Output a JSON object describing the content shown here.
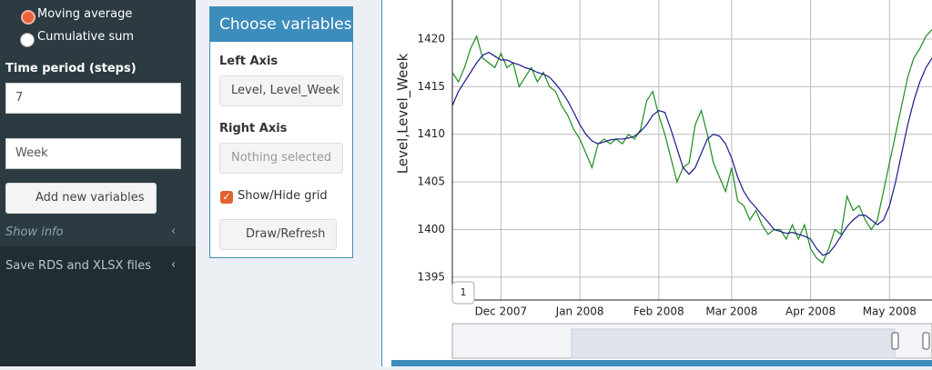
{
  "sidebar": {
    "radio_options": [
      "Moving average",
      "Cumulative sum"
    ],
    "time_period_label": "Time period (steps)",
    "time_period_value": "7",
    "name_value": "Week",
    "add_button": "Add new variables",
    "show_info": "Show info",
    "save_menu": "Save RDS and XLSX files"
  },
  "box": {
    "title": "Choose variables",
    "left_axis_label": "Left Axis",
    "left_axis_value": "Level, Level_Week",
    "right_axis_label": "Right Axis",
    "right_axis_value": "Nothing selected",
    "grid_checkbox": "Show/Hide grid",
    "draw_button": "Draw/Refresh"
  },
  "chart_data": {
    "type": "line",
    "ylabel": "Level,Level_Week",
    "annotation": "1",
    "grid": true,
    "categories": [
      null,
      null,
      null,
      null,
      null,
      null,
      null,
      null,
      "Dec 2007",
      null,
      null,
      null,
      null,
      null,
      null,
      null,
      null,
      null,
      null,
      null,
      null,
      "Jan 2008",
      null,
      null,
      null,
      null,
      null,
      null,
      null,
      null,
      null,
      null,
      null,
      null,
      "Feb 2008",
      null,
      null,
      null,
      null,
      null,
      null,
      null,
      null,
      null,
      null,
      null,
      "Mar 2008",
      null,
      null,
      null,
      null,
      null,
      null,
      null,
      null,
      null,
      null,
      null,
      null,
      "Apr 2008",
      null,
      null,
      null,
      null,
      null,
      null,
      null,
      null,
      null,
      null,
      null,
      null,
      "May 2008",
      null,
      null,
      null,
      null,
      null,
      null,
      null
    ],
    "ylim": [
      1392.6,
      1424.1
    ],
    "yticks": [
      1395,
      1400,
      1405,
      1410,
      1415,
      1420
    ],
    "series": [
      {
        "color": "#1e8c1e",
        "values": [
          1416.5,
          1415.5,
          1417,
          1419,
          1420.3,
          1418,
          1417.5,
          1417,
          1418.5,
          1417,
          1417.5,
          1415,
          1416,
          1417,
          1415.5,
          1416.5,
          1415,
          1414.5,
          1413,
          1412,
          1410.5,
          1409.5,
          1408,
          1406.5,
          1409,
          1409.5,
          1409,
          1409.5,
          1409,
          1410,
          1409.5,
          1410.5,
          1413.5,
          1414.5,
          1412,
          1410,
          1407.5,
          1405,
          1406.5,
          1407,
          1411,
          1412.5,
          1410,
          1407,
          1405.5,
          1404,
          1406.5,
          1403,
          1402.5,
          1401,
          1402,
          1400.5,
          1399.5,
          1400,
          1400,
          1399,
          1400.5,
          1399,
          1400.5,
          1398,
          1397,
          1396.5,
          1398,
          1400,
          1399.5,
          1403.5,
          1402,
          1402.5,
          1401,
          1400,
          1401,
          1404,
          1407,
          1410,
          1413,
          1416,
          1418,
          1419,
          1420.3,
          1421
        ]
      },
      {
        "color": "#1a1a8c",
        "values": [
          1413,
          1414.5,
          1415.5,
          1416.5,
          1417.5,
          1418.3,
          1418.6,
          1418.2,
          1417.8,
          1417.8,
          1417.5,
          1417.3,
          1417,
          1416.8,
          1416.5,
          1416.3,
          1416,
          1415.3,
          1414.5,
          1413.5,
          1412.3,
          1411,
          1410,
          1409.3,
          1409,
          1409.2,
          1409.4,
          1409.5,
          1409.5,
          1409.6,
          1409.8,
          1410.3,
          1411,
          1412,
          1412.5,
          1412.3,
          1410.5,
          1408.5,
          1406.5,
          1405.8,
          1406.5,
          1408,
          1409.5,
          1410,
          1409.8,
          1409,
          1407.5,
          1405.5,
          1404,
          1403,
          1402.3,
          1401.5,
          1400.8,
          1400,
          1399.8,
          1399.6,
          1399.7,
          1399.5,
          1399.3,
          1399,
          1398,
          1397.3,
          1397.5,
          1398.3,
          1399.3,
          1400.3,
          1401,
          1401.5,
          1401.5,
          1401,
          1400.5,
          1401,
          1402.5,
          1405,
          1408,
          1411,
          1413.5,
          1415.5,
          1417,
          1418
        ]
      }
    ]
  }
}
